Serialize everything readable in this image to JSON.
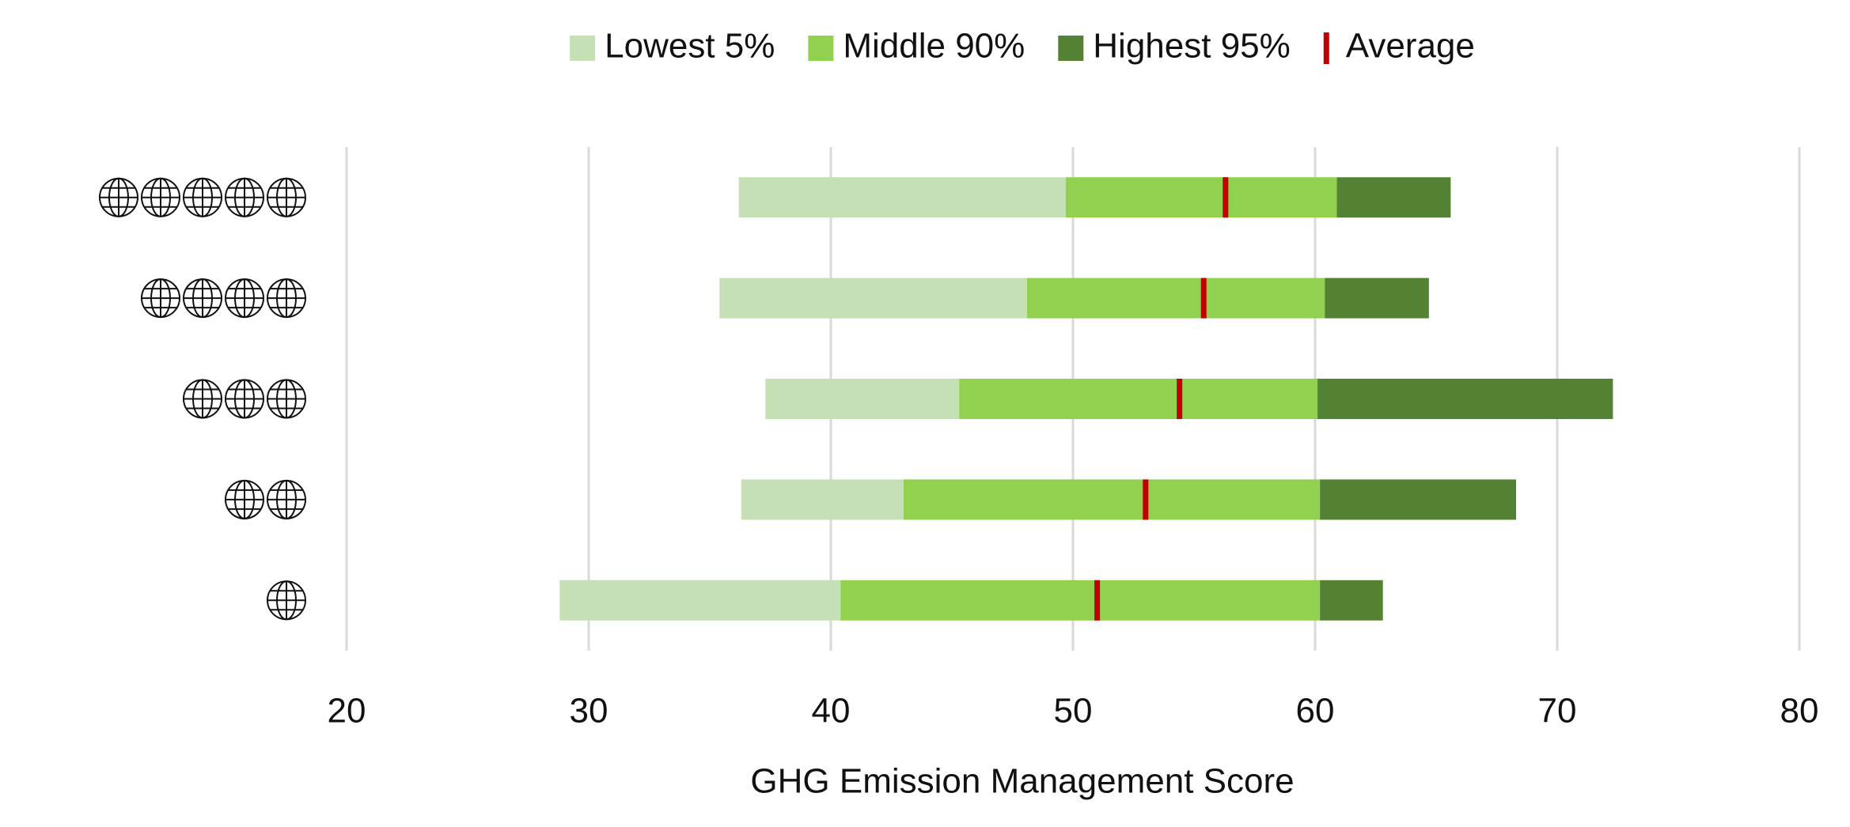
{
  "chart_data": {
    "type": "floating-stacked-bar",
    "x_label": "GHG Emission Management Score",
    "ratings": [
      5,
      4,
      3,
      2,
      1
    ],
    "starts": [
      36.2,
      35.4,
      37.3,
      36.3,
      28.8
    ],
    "series": [
      {
        "name": "Lowest 5%",
        "color": "#c5e0b4",
        "values": [
          13.5,
          12.7,
          8.0,
          6.7,
          11.6
        ]
      },
      {
        "name": "Middle 90%",
        "color": "#92d050",
        "values": [
          11.2,
          12.3,
          14.8,
          17.2,
          19.8
        ]
      },
      {
        "name": "Highest 95%",
        "color": "#548235",
        "values": [
          4.7,
          4.3,
          12.2,
          8.1,
          2.6
        ]
      }
    ],
    "average": {
      "name": "Average",
      "color": "#c00000",
      "values": [
        56.3,
        55.4,
        54.4,
        53.0,
        51.0
      ]
    },
    "xlim": [
      20,
      80
    ],
    "xticks": [
      20,
      30,
      40,
      50,
      60,
      70,
      80
    ],
    "grid": true
  }
}
